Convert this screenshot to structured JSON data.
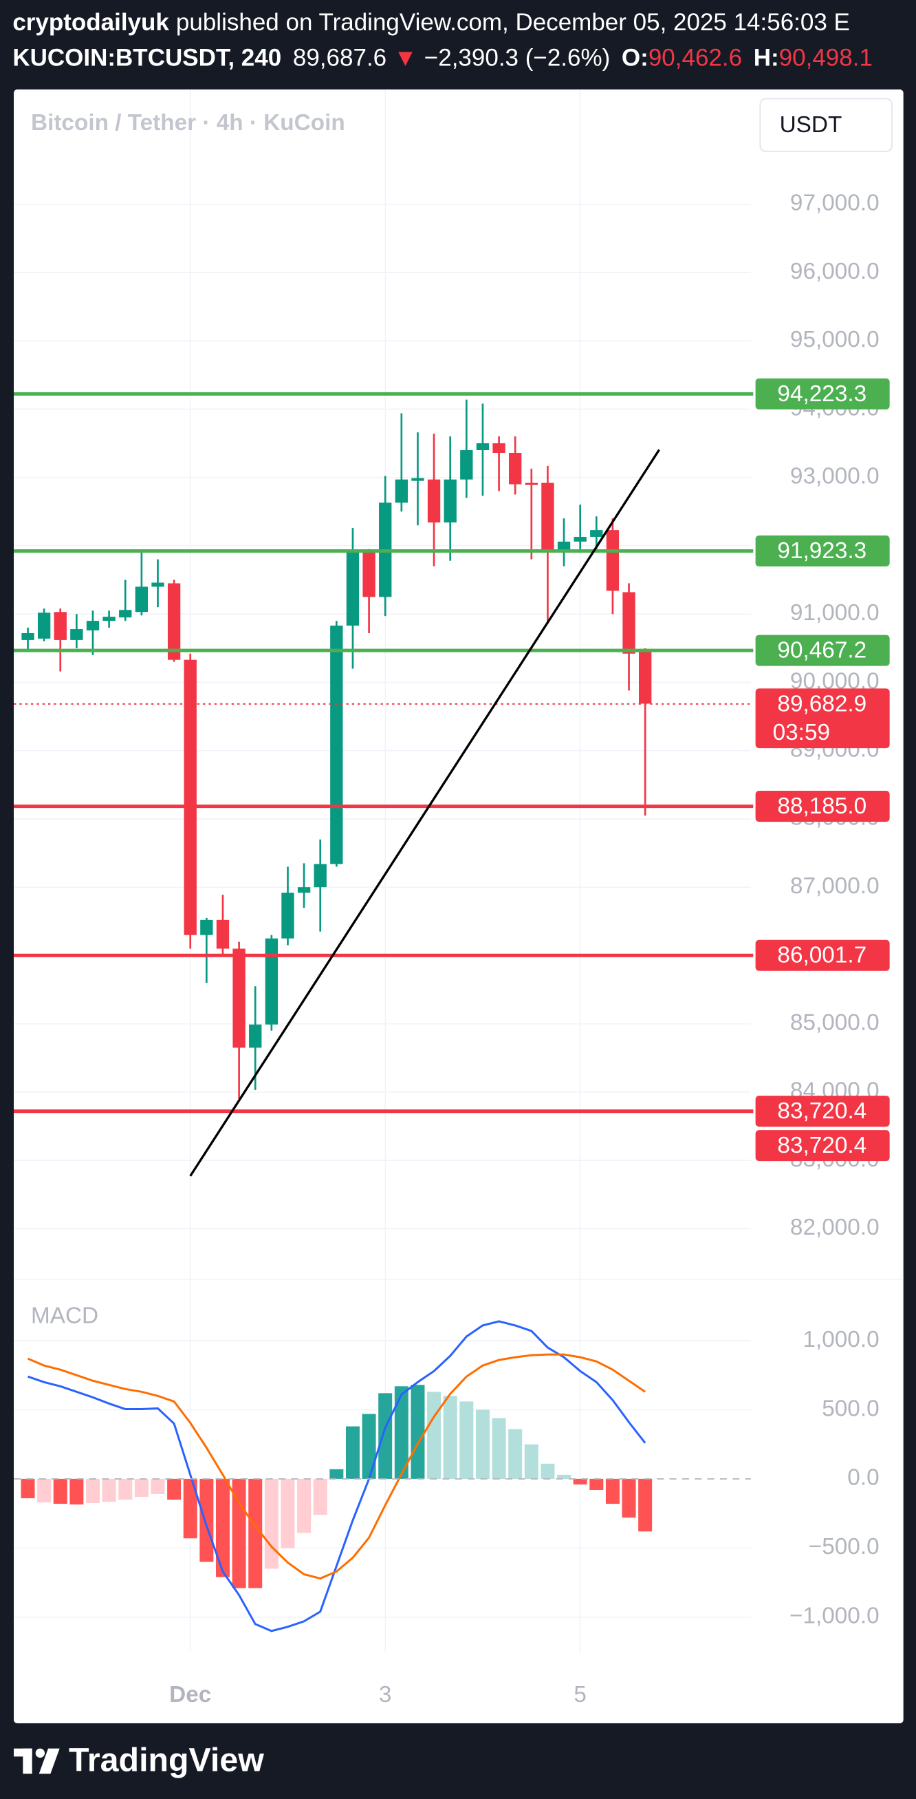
{
  "header": {
    "author": "cryptodailyuk",
    "published": "published on TradingView.com, December 05, 2025 14:56:03 E",
    "symbol": "KUCOIN:BTCUSDT, 240",
    "price": "89,687.6",
    "arrow": "▼",
    "change": "−2,390.3 (−2.6%)",
    "open_label": "O:",
    "open": "90,462.6",
    "high_label": "H:",
    "high": "90,498.1"
  },
  "chart_data": [
    {
      "type": "candlestick",
      "title": "Bitcoin / Tether · 4h · KuCoin",
      "currency": "USDT",
      "up_color": "#089981",
      "down_color": "#f23645",
      "grid": true,
      "categories": [
        null,
        null,
        null,
        null,
        null,
        null,
        null,
        null,
        null,
        null,
        "Dec",
        null,
        null,
        null,
        null,
        null,
        null,
        null,
        null,
        null,
        null,
        null,
        "3",
        null,
        null,
        null,
        null,
        null,
        null,
        null,
        null,
        null,
        null,
        null,
        "5",
        null,
        null,
        null,
        null
      ],
      "open": [
        90620,
        90640,
        91030,
        90620,
        90760,
        90900,
        90950,
        91030,
        91400,
        91450,
        90330,
        86300,
        86520,
        86100,
        84650,
        84990,
        86250,
        86920,
        87000,
        87340,
        90830,
        91900,
        91250,
        92630,
        92950,
        92970,
        92340,
        92970,
        93400,
        93500,
        93360,
        92920,
        92920,
        91920,
        92060,
        92130,
        92230,
        91320,
        90462.6
      ],
      "high": [
        90800,
        91080,
        91080,
        91000,
        91050,
        91050,
        91500,
        91930,
        91800,
        91500,
        90420,
        86550,
        86890,
        86200,
        85550,
        86300,
        87300,
        87350,
        87700,
        90900,
        92260,
        91950,
        93020,
        93940,
        93660,
        93640,
        93600,
        94140,
        94080,
        93600,
        93600,
        93130,
        93170,
        92400,
        92600,
        92430,
        92400,
        91450,
        90498.1
      ],
      "low": [
        90450,
        90600,
        90160,
        90500,
        90400,
        90800,
        90900,
        90980,
        91100,
        90300,
        86100,
        85600,
        86000,
        83900,
        84030,
        84900,
        86150,
        86700,
        86350,
        87300,
        90200,
        90720,
        90970,
        92500,
        92300,
        91700,
        91780,
        92700,
        92730,
        92800,
        92750,
        91800,
        90870,
        91700,
        91900,
        91950,
        91000,
        89880,
        88050
      ],
      "close": [
        90720,
        91020,
        90620,
        90780,
        90900,
        90960,
        91060,
        91400,
        91460,
        90330,
        86300,
        86520,
        86100,
        84650,
        84990,
        86250,
        86920,
        87000,
        87340,
        90830,
        91900,
        91250,
        92630,
        92970,
        92990,
        92340,
        92970,
        93400,
        93500,
        93360,
        92900,
        92890,
        91920,
        92060,
        92130,
        92230,
        91340,
        90420,
        89687.6
      ],
      "ylim": [
        81260,
        98680
      ],
      "yticks": [
        {
          "value": 82000,
          "label": "82,000.0"
        },
        {
          "value": 83000,
          "label": "83,000.0"
        },
        {
          "value": 84000,
          "label": "84,000.0"
        },
        {
          "value": 85000,
          "label": "85,000.0"
        },
        {
          "value": 86000,
          "label": "86,000.0"
        },
        {
          "value": 87000,
          "label": "87,000.0"
        },
        {
          "value": 88000,
          "label": "88,000.0"
        },
        {
          "value": 89000,
          "label": "89,000.0"
        },
        {
          "value": 90000,
          "label": "90,000.0"
        },
        {
          "value": 91000,
          "label": "91,000.0"
        },
        {
          "value": 92000,
          "label": "92,000.0"
        },
        {
          "value": 93000,
          "label": "93,000.0"
        },
        {
          "value": 94000,
          "label": "94,000.0"
        },
        {
          "value": 95000,
          "label": "95,000.0"
        },
        {
          "value": 96000,
          "label": "96,000.0"
        },
        {
          "value": 97000,
          "label": "97,000.0"
        }
      ],
      "levels": [
        {
          "value": 94223.3,
          "label": "94,223.3",
          "color": "#4caf50"
        },
        {
          "value": 91923.3,
          "label": "91,923.3",
          "color": "#4caf50"
        },
        {
          "value": 90467.2,
          "label": "90,467.2",
          "color": "#4caf50"
        },
        {
          "value": 88185.0,
          "label": "88,185.0",
          "color": "#f23645"
        },
        {
          "value": 86001.7,
          "label": "86,001.7",
          "color": "#f23645"
        },
        {
          "value": 83720.4,
          "label": "83,720.4",
          "color": "#f23645"
        },
        {
          "value": 83720.4,
          "label": "83,720.4",
          "color": "#f23645"
        }
      ],
      "current_price": {
        "value": 89682.9,
        "label": "89,682.9",
        "countdown": "03:59",
        "color": "#f23645"
      }
    },
    {
      "type": "macd",
      "title": "MACD",
      "histogram": [
        -140,
        -170,
        -180,
        -185,
        -175,
        -165,
        -150,
        -130,
        -110,
        -150,
        -430,
        -600,
        -710,
        -790,
        -790,
        -650,
        -500,
        -390,
        -260,
        70,
        380,
        470,
        620,
        670,
        680,
        630,
        600,
        560,
        500,
        440,
        360,
        250,
        110,
        30,
        -40,
        -80,
        -180,
        -280,
        -380
      ],
      "histogram_colors": [
        "#ff5252",
        "#ffcdd2",
        "#ff5252",
        "#ff5252",
        "#ffcdd2",
        "#ffcdd2",
        "#ffcdd2",
        "#ffcdd2",
        "#ffcdd2",
        "#ff5252",
        "#ff5252",
        "#ff5252",
        "#ff5252",
        "#ff5252",
        "#ff5252",
        "#ffcdd2",
        "#ffcdd2",
        "#ffcdd2",
        "#ffcdd2",
        "#26a69a",
        "#26a69a",
        "#26a69a",
        "#26a69a",
        "#26a69a",
        "#26a69a",
        "#b2dfdb",
        "#b2dfdb",
        "#b2dfdb",
        "#b2dfdb",
        "#b2dfdb",
        "#b2dfdb",
        "#b2dfdb",
        "#b2dfdb",
        "#b2dfdb",
        "#ff5252",
        "#ff5252",
        "#ff5252",
        "#ff5252",
        "#ff5252"
      ],
      "macd": {
        "color": "#2962ff",
        "values": [
          740,
          700,
          670,
          630,
          590,
          545,
          505,
          505,
          510,
          400,
          30,
          -340,
          -670,
          -840,
          -1050,
          -1100,
          -1070,
          -1030,
          -960,
          -630,
          -300,
          0,
          370,
          610,
          700,
          780,
          890,
          1030,
          1110,
          1140,
          1110,
          1070,
          950,
          880,
          780,
          700,
          570,
          410,
          260
        ]
      },
      "signal": {
        "color": "#ff6d00",
        "values": [
          870,
          820,
          790,
          750,
          710,
          680,
          650,
          630,
          600,
          560,
          405,
          225,
          30,
          -175,
          -340,
          -490,
          -605,
          -690,
          -720,
          -670,
          -570,
          -425,
          -190,
          35,
          255,
          450,
          615,
          740,
          820,
          860,
          880,
          895,
          900,
          900,
          880,
          850,
          790,
          710,
          630
        ]
      },
      "ylim": [
        -1253,
        1444
      ],
      "yticks": [
        {
          "value": 1000,
          "label": "1,000.0"
        },
        {
          "value": 500,
          "label": "500.0"
        },
        {
          "value": 0,
          "label": "0.0"
        },
        {
          "value": -500,
          "label": "−500.0"
        },
        {
          "value": -1000,
          "label": "−1,000.0"
        }
      ]
    }
  ],
  "footer": {
    "logo": "TradingView"
  }
}
